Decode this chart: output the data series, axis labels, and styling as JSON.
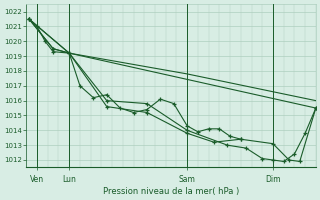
{
  "title": "Pression niveau de la mer( hPa )",
  "ylabel_ticks": [
    1012,
    1013,
    1014,
    1015,
    1016,
    1017,
    1018,
    1019,
    1020,
    1021,
    1022
  ],
  "ylim": [
    1011.5,
    1022.5
  ],
  "xlim": [
    0,
    216
  ],
  "background_color": "#d8ede4",
  "grid_color": "#aecfbf",
  "line_color": "#1a5c2a",
  "x_tick_positions": [
    8,
    32,
    120,
    184
  ],
  "x_tick_labels": [
    "Ven",
    "Lun",
    "Sam",
    "Dim"
  ],
  "x_vline_positions": [
    8,
    32,
    120,
    184
  ],
  "line1_x": [
    2,
    8,
    14,
    20,
    32,
    40,
    50,
    60,
    70,
    80,
    90,
    100,
    110,
    120,
    128,
    136,
    144,
    152,
    160
  ],
  "line1_y": [
    1021.5,
    1021.0,
    1020.0,
    1019.3,
    1019.2,
    1017.0,
    1016.2,
    1016.4,
    1015.5,
    1015.2,
    1015.4,
    1016.1,
    1015.8,
    1014.3,
    1013.9,
    1014.1,
    1014.1,
    1013.6,
    1013.4
  ],
  "line2_x": [
    2,
    32,
    216
  ],
  "line2_y": [
    1021.5,
    1019.2,
    1015.5
  ],
  "line3_x": [
    2,
    32,
    120,
    216
  ],
  "line3_y": [
    1021.5,
    1019.2,
    1017.8,
    1016.0
  ],
  "line4_x": [
    2,
    20,
    32,
    60,
    90,
    120,
    140,
    160,
    184,
    196,
    204,
    216
  ],
  "line4_y": [
    1021.5,
    1019.5,
    1019.2,
    1015.6,
    1015.2,
    1013.8,
    1013.2,
    1013.4,
    1013.1,
    1012.0,
    1011.9,
    1015.5
  ],
  "line5_x": [
    2,
    20,
    32,
    60,
    90,
    120,
    150,
    164,
    176,
    184,
    192,
    200,
    208,
    216
  ],
  "line5_y": [
    1021.5,
    1019.5,
    1019.2,
    1016.0,
    1015.8,
    1014.0,
    1013.0,
    1012.8,
    1012.1,
    1012.0,
    1011.9,
    1012.4,
    1013.8,
    1015.5
  ]
}
